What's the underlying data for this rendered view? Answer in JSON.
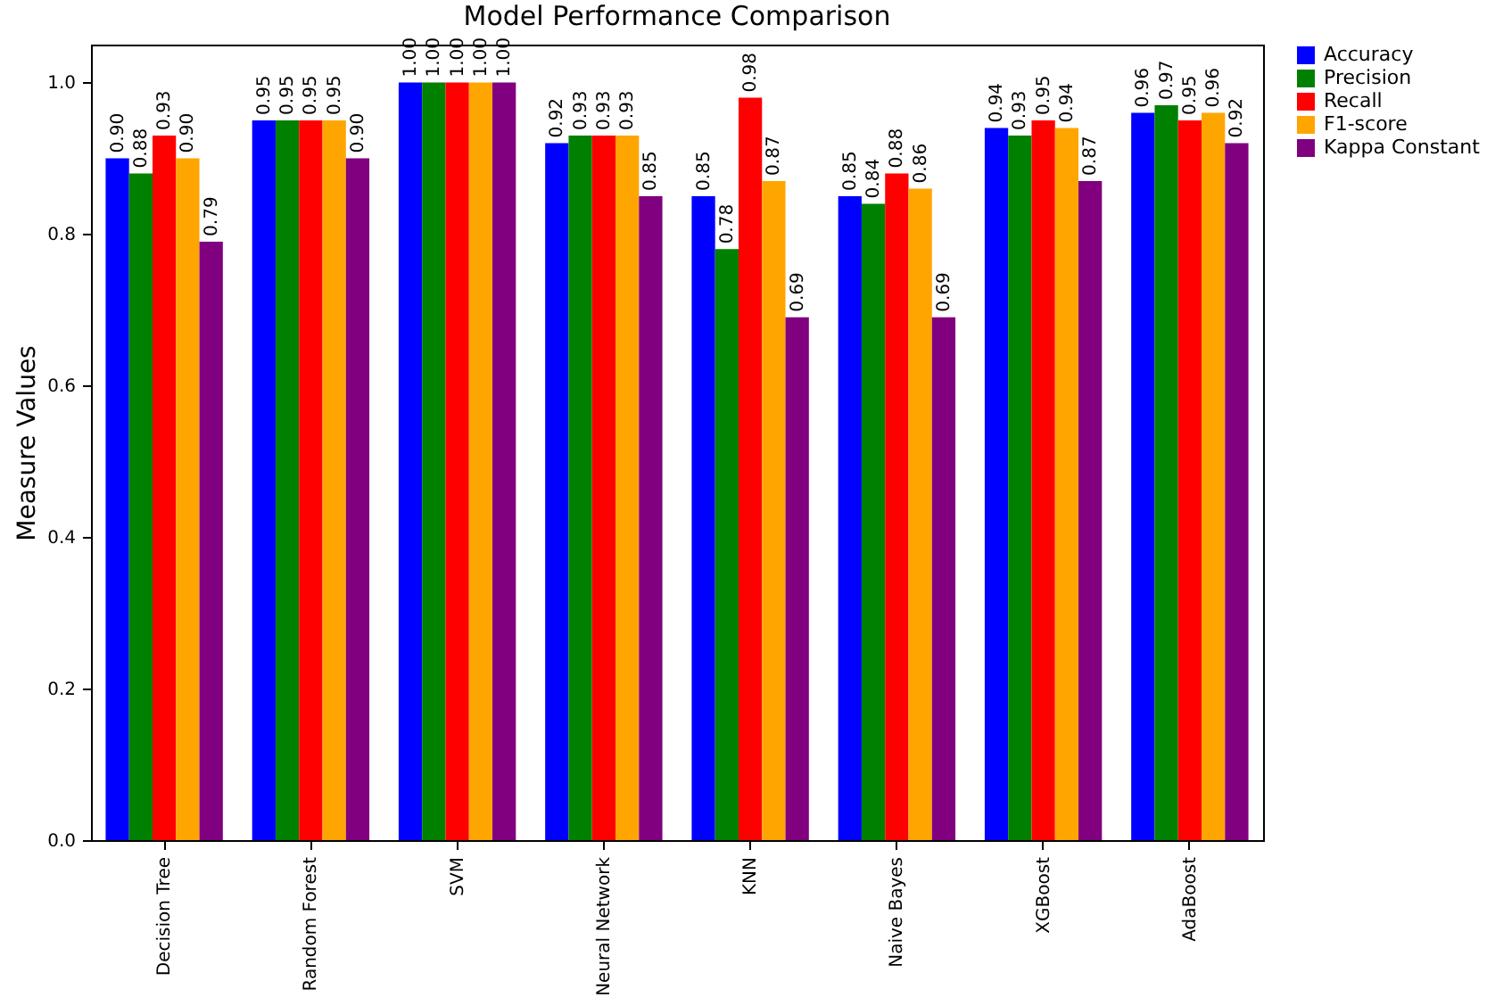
{
  "chart_data": {
    "type": "bar",
    "title": "Model Performance Comparison",
    "ylabel": "Measure Values",
    "categories": [
      "Decision Tree",
      "Random Forest",
      "SVM",
      "Neural Network",
      "KNN",
      "Naive Bayes",
      "XGBoost",
      "AdaBoost"
    ],
    "series": [
      {
        "name": "Accuracy",
        "color": "#0000ff",
        "values": [
          0.9,
          0.95,
          1.0,
          0.92,
          0.85,
          0.85,
          0.94,
          0.96
        ],
        "value_labels": [
          "0.90",
          "0.95",
          "1.00",
          "0.92",
          "0.85",
          "0.85",
          "0.94",
          "0.96"
        ]
      },
      {
        "name": "Precision",
        "color": "#008000",
        "values": [
          0.88,
          0.95,
          1.0,
          0.93,
          0.78,
          0.84,
          0.93,
          0.97
        ],
        "value_labels": [
          "0.88",
          "0.95",
          "1.00",
          "0.93",
          "0.78",
          "0.84",
          "0.93",
          "0.97"
        ]
      },
      {
        "name": "Recall",
        "color": "#ff0000",
        "values": [
          0.93,
          0.95,
          1.0,
          0.93,
          0.98,
          0.88,
          0.95,
          0.95
        ],
        "value_labels": [
          "0.93",
          "0.95",
          "1.00",
          "0.93",
          "0.98",
          "0.88",
          "0.95",
          "0.95"
        ]
      },
      {
        "name": "F1-score",
        "color": "#ffa500",
        "values": [
          0.9,
          0.95,
          1.0,
          0.93,
          0.87,
          0.86,
          0.94,
          0.96
        ],
        "value_labels": [
          "0.90",
          "0.95",
          "1.00",
          "0.93",
          "0.87",
          "0.86",
          "0.94",
          "0.96"
        ]
      },
      {
        "name": "Kappa Constant",
        "color": "#800080",
        "values": [
          0.79,
          0.9,
          1.0,
          0.85,
          0.69,
          0.69,
          0.87,
          0.92
        ],
        "value_labels": [
          "0.79",
          "0.90",
          "1.00",
          "0.85",
          "0.69",
          "0.69",
          "0.87",
          "0.92"
        ]
      }
    ],
    "ylim": [
      0,
      1.05
    ],
    "yticks": [
      {
        "value": 0,
        "label": "0.0"
      },
      {
        "value": 0.2,
        "label": "0.2"
      },
      {
        "value": 0.4,
        "label": "0.4"
      },
      {
        "value": 0.6,
        "label": "0.6"
      },
      {
        "value": 0.8,
        "label": "0.8"
      },
      {
        "value": 1.0,
        "label": "1.0"
      }
    ],
    "grid": false,
    "legend": "right"
  }
}
